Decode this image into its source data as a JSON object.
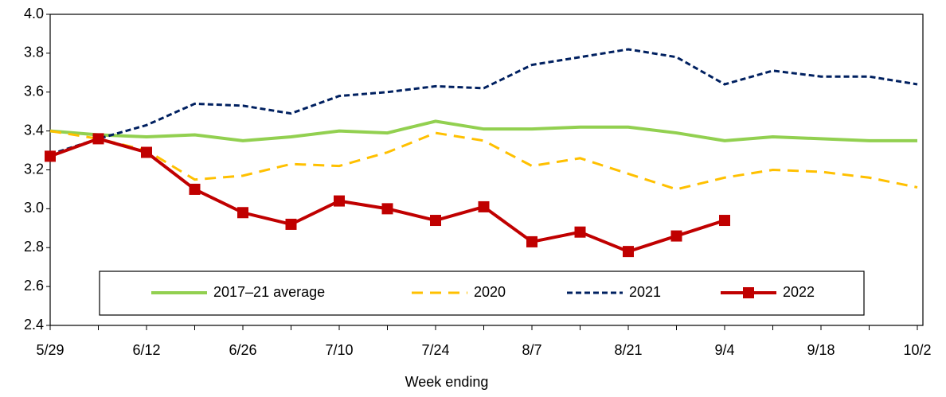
{
  "chart_data": {
    "type": "line",
    "x_label": "Week ending",
    "categories": [
      "5/29",
      null,
      "6/12",
      null,
      "6/26",
      null,
      "7/10",
      null,
      "7/24",
      null,
      "8/7",
      null,
      "8/21",
      null,
      "9/4",
      null,
      "9/18",
      null,
      "10/2"
    ],
    "ylim": [
      2.4,
      4
    ],
    "yticks": [
      2.4,
      2.6,
      2.8,
      {
        "value": 3,
        "label": "3.0"
      },
      3.2,
      3.4,
      3.6,
      3.8,
      {
        "value": 4,
        "label": "4.0"
      }
    ],
    "legend": "bottom",
    "series": [
      {
        "name": "2017–21 average",
        "color": "#92d050",
        "style": "solid",
        "values": [
          3.4,
          3.38,
          3.37,
          3.38,
          3.35,
          3.37,
          3.4,
          3.39,
          3.45,
          3.41,
          3.41,
          3.42,
          3.42,
          3.39,
          3.35,
          3.37,
          3.36,
          3.35,
          3.35
        ]
      },
      {
        "name": "2020",
        "color": "#ffc000",
        "style": "dashed",
        "values": [
          3.4,
          3.36,
          3.3,
          3.15,
          3.17,
          3.23,
          3.22,
          3.29,
          3.39,
          3.35,
          3.22,
          3.26,
          3.18,
          3.1,
          3.16,
          3.2,
          3.19,
          3.16,
          3.11
        ]
      },
      {
        "name": "2021",
        "color": "#002060",
        "style": "dotted",
        "values": [
          3.28,
          3.36,
          3.43,
          3.54,
          3.53,
          3.49,
          3.58,
          3.6,
          3.63,
          3.62,
          3.74,
          3.78,
          3.82,
          3.78,
          3.64,
          3.71,
          3.68,
          3.68,
          3.64
        ]
      },
      {
        "name": "2022",
        "color": "#c00000",
        "style": "solid",
        "marker": "square",
        "values": [
          3.27,
          3.36,
          3.29,
          3.1,
          2.98,
          2.92,
          3.04,
          3.0,
          2.94,
          3.01,
          2.83,
          2.88,
          2.78,
          2.86,
          2.94,
          null,
          null,
          null,
          null
        ]
      }
    ]
  }
}
